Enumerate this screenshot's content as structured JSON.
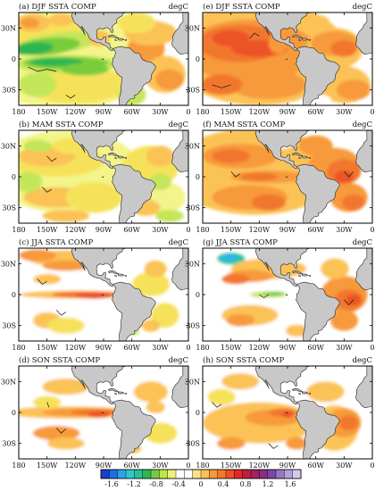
{
  "figure": {
    "units_label": "degC",
    "panels": [
      {
        "id": "a",
        "title": "(a) DJF SSTA COMP",
        "col": 0,
        "row": 0,
        "theme": "djf_a"
      },
      {
        "id": "e",
        "title": "(e) DJF SSTA COMP",
        "col": 1,
        "row": 0,
        "theme": "djf_e"
      },
      {
        "id": "b",
        "title": "(b) MAM SSTA COMP",
        "col": 0,
        "row": 1,
        "theme": "mam_b"
      },
      {
        "id": "f",
        "title": "(f) MAM SSTA COMP",
        "col": 1,
        "row": 1,
        "theme": "mam_f"
      },
      {
        "id": "c",
        "title": "(c) JJA SSTA COMP",
        "col": 0,
        "row": 2,
        "theme": "jja_c"
      },
      {
        "id": "g",
        "title": "(g) JJA SSTA COMP",
        "col": 1,
        "row": 2,
        "theme": "jja_g"
      },
      {
        "id": "d",
        "title": "(d) SON SSTA COMP",
        "col": 0,
        "row": 3,
        "theme": "son_d"
      },
      {
        "id": "h",
        "title": "(h) SON SSTA COMP",
        "col": 1,
        "row": 3,
        "theme": "son_h"
      }
    ],
    "lat_ticks": [
      "30N",
      "0",
      "30S"
    ],
    "lon_ticks": [
      "180",
      "150W",
      "120W",
      "90W",
      "60W",
      "30W",
      "0"
    ],
    "colorbar": {
      "labels": [
        "-1.6",
        "-1.2",
        "-0.8",
        "-0.4",
        "0",
        "0.4",
        "0.8",
        "1.2",
        "1.6"
      ],
      "colors": [
        "#1c3cd0",
        "#1f6fe0",
        "#2aa3e6",
        "#2fc7cf",
        "#27c29a",
        "#2fb653",
        "#74cc3e",
        "#bfe44a",
        "#eef079",
        "#ffffff",
        "#ffffff",
        "#fde08a",
        "#fbbf55",
        "#f89a3c",
        "#f4762e",
        "#ee4d28",
        "#e0262b",
        "#c01e3e",
        "#a2215e",
        "#8a2c86",
        "#7c45a6",
        "#9577c4",
        "#b7a2d8",
        "#d6c8ea"
      ]
    },
    "palette": {
      "white": "#ffffff",
      "pale_yellow": "#f3f58a",
      "yellow": "#f6e25a",
      "light_orange": "#fbc257",
      "orange": "#f79a3b",
      "dark_orange": "#f2772e",
      "red_orange": "#ec5228",
      "red": "#e0262b",
      "pale_green": "#c4e65a",
      "green": "#7acc3e",
      "dark_green": "#2fb653",
      "teal": "#2bc6a8",
      "cyan": "#2fb8e0",
      "land": "#c8c8c8"
    }
  }
}
